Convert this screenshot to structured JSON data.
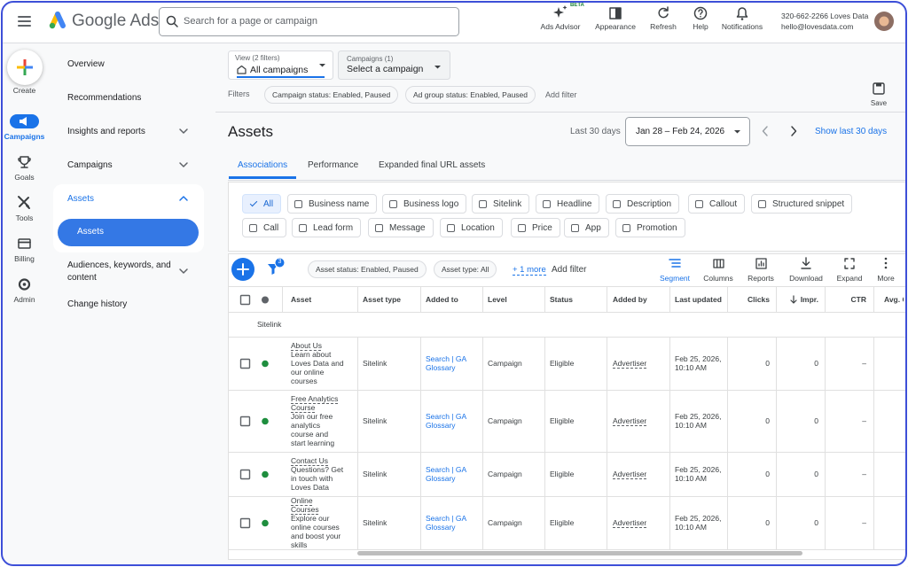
{
  "header": {
    "brand": "Google Ads",
    "search_placeholder": "Search for a page or campaign",
    "actions": [
      {
        "label": "Ads Advisor",
        "badge": "BETA"
      },
      {
        "label": "Appearance"
      },
      {
        "label": "Refresh"
      },
      {
        "label": "Help"
      },
      {
        "label": "Notifications"
      }
    ],
    "account_name": "320-662-2266 Loves Data",
    "account_email": "hello@lovesdata.com"
  },
  "rail": [
    "Create",
    "Campaigns",
    "Goals",
    "Tools",
    "Billing",
    "Admin"
  ],
  "nav": [
    {
      "label": "Overview"
    },
    {
      "label": "Recommendations"
    },
    {
      "label": "Insights and reports"
    },
    {
      "label": "Campaigns"
    },
    {
      "label": "Assets",
      "children": [
        "Assets"
      ]
    },
    {
      "label": "Audiences, keywords, and content"
    },
    {
      "label": "Change history"
    }
  ],
  "filters": {
    "view_label": "View (2 filters)",
    "view_value": "All campaigns",
    "campaign_label": "Campaigns (1)",
    "campaign_value": "Select a campaign",
    "label": "Filters",
    "chips": [
      "Campaign status: Enabled, Paused",
      "Ad group status: Enabled, Paused"
    ],
    "add_filter": "Add filter",
    "save": "Save"
  },
  "page": {
    "title": "Assets",
    "range_label": "Last 30 days",
    "range": "Jan 28 – Feb 24, 2026",
    "show_last": "Show last 30 days"
  },
  "tabs": [
    "Associations",
    "Performance",
    "Expanded final URL assets"
  ],
  "asset_types": [
    "All",
    "Business name",
    "Business logo",
    "Sitelink",
    "Headline",
    "Description",
    "Callout",
    "Structured snippet",
    "Call",
    "Lead form",
    "Message",
    "Location",
    "Price",
    "App",
    "Promotion"
  ],
  "toolbar": {
    "filter_count": 3,
    "chips": [
      "Asset status: Enabled, Paused",
      "Asset type: All"
    ],
    "more": "+ 1 more",
    "add_filter": "Add filter",
    "tools": [
      "Segment",
      "Columns",
      "Reports",
      "Download",
      "Expand",
      "More"
    ]
  },
  "table": {
    "columns": [
      "Asset",
      "Asset type",
      "Added to",
      "Level",
      "Status",
      "Added by",
      "Last updated",
      "Clicks",
      "Impr.",
      "CTR",
      "Avg. CPC"
    ],
    "group": "Sitelink",
    "rows": [
      {
        "asset": "About Us",
        "description": "Learn about Loves Data and our online courses",
        "asset_type": "Sitelink",
        "added_to": "Search | GA Glossary",
        "level": "Campaign",
        "status": "Eligible",
        "added_by": "Advertiser",
        "last_updated": "Feb 25, 2026, 10:10 AM",
        "clicks": 0,
        "impr": 0,
        "ctr": "–"
      },
      {
        "asset": "Free Analytics Course",
        "description": "Join our free analytics course and start learning",
        "asset_type": "Sitelink",
        "added_to": "Search | GA Glossary",
        "level": "Campaign",
        "status": "Eligible",
        "added_by": "Advertiser",
        "last_updated": "Feb 25, 2026, 10:10 AM",
        "clicks": 0,
        "impr": 0,
        "ctr": "–"
      },
      {
        "asset": "Contact Us",
        "description": "Questions? Get in touch with Loves Data",
        "asset_type": "Sitelink",
        "added_to": "Search | GA Glossary",
        "level": "Campaign",
        "status": "Eligible",
        "added_by": "Advertiser",
        "last_updated": "Feb 25, 2026, 10:10 AM",
        "clicks": 0,
        "impr": 0,
        "ctr": "–"
      },
      {
        "asset": "Online Courses",
        "description": "Explore our online courses and boost your skills",
        "asset_type": "Sitelink",
        "added_to": "Search | GA Glossary",
        "level": "Campaign",
        "status": "Eligible",
        "added_by": "Advertiser",
        "last_updated": "Feb 25, 2026, 10:10 AM",
        "clicks": 0,
        "impr": 0,
        "ctr": "–"
      }
    ]
  }
}
